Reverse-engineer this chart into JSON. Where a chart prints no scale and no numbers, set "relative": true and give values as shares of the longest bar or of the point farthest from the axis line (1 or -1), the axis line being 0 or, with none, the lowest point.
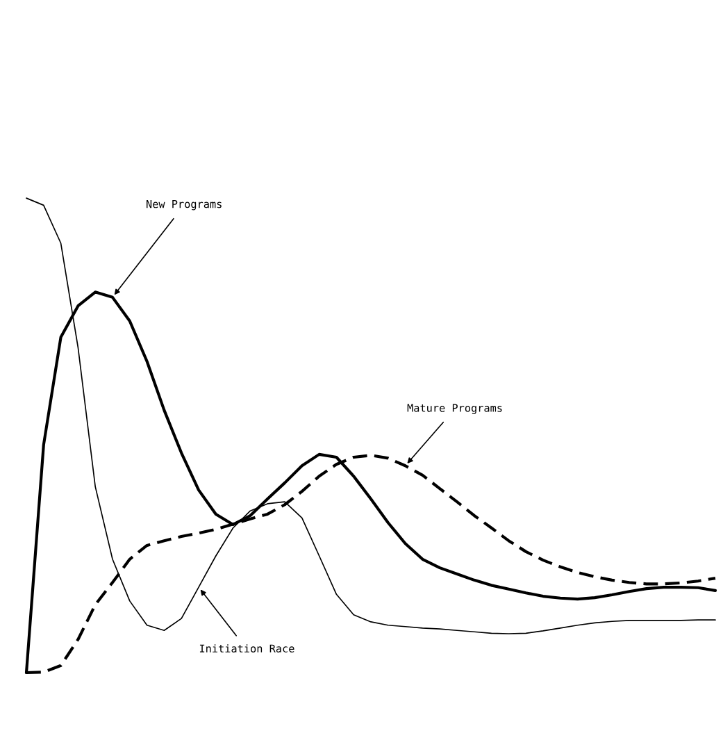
{
  "chart_data": {
    "type": "line",
    "relative": true,
    "categories": [
      null,
      null,
      null,
      null,
      null,
      null,
      null,
      null,
      null,
      null,
      null,
      null,
      null,
      null,
      null,
      null,
      null,
      null,
      null,
      null,
      null,
      null,
      null,
      null,
      null,
      null,
      null,
      null,
      null,
      null,
      null,
      null,
      null,
      null,
      null,
      null,
      null,
      null,
      null,
      null,
      null
    ],
    "series": [
      {
        "name": "Initiation Race",
        "color": "#000000",
        "line_style": "solid",
        "values": [
          1.0,
          0.985,
          0.905,
          0.685,
          0.392,
          0.239,
          0.151,
          0.1,
          0.089,
          0.114,
          0.18,
          0.246,
          0.305,
          0.341,
          0.356,
          0.36,
          0.326,
          0.246,
          0.165,
          0.122,
          0.107,
          0.1,
          0.097,
          0.094,
          0.092,
          0.089,
          0.086,
          0.083,
          0.082,
          0.083,
          0.088,
          0.094,
          0.1,
          0.105,
          0.108,
          0.11,
          0.11,
          0.11,
          0.11,
          0.111,
          0.111
        ]
      },
      {
        "name": "New Programs",
        "color": "#000000",
        "line_style": "solid",
        "values": [
          0,
          0.48,
          0.707,
          0.773,
          0.802,
          0.791,
          0.741,
          0.656,
          0.553,
          0.463,
          0.385,
          0.334,
          0.312,
          0.331,
          0.366,
          0.4,
          0.436,
          0.46,
          0.454,
          0.414,
          0.366,
          0.316,
          0.272,
          0.239,
          0.221,
          0.208,
          0.195,
          0.184,
          0.176,
          0.168,
          0.161,
          0.157,
          0.155,
          0.158,
          0.164,
          0.171,
          0.177,
          0.18,
          0.18,
          0.179,
          0.173
        ]
      },
      {
        "name": "Mature Programs",
        "color": "#000000",
        "line_style": "dashed",
        "values": [
          0,
          0.001,
          0.015,
          0.07,
          0.143,
          0.19,
          0.239,
          0.268,
          0.278,
          0.287,
          0.294,
          0.302,
          0.313,
          0.324,
          0.334,
          0.354,
          0.382,
          0.414,
          0.439,
          0.454,
          0.458,
          0.452,
          0.436,
          0.416,
          0.388,
          0.36,
          0.331,
          0.305,
          0.278,
          0.255,
          0.237,
          0.223,
          0.211,
          0.202,
          0.195,
          0.19,
          0.187,
          0.187,
          0.189,
          0.193,
          0.199
        ]
      }
    ],
    "legend": false,
    "grid": false
  }
}
